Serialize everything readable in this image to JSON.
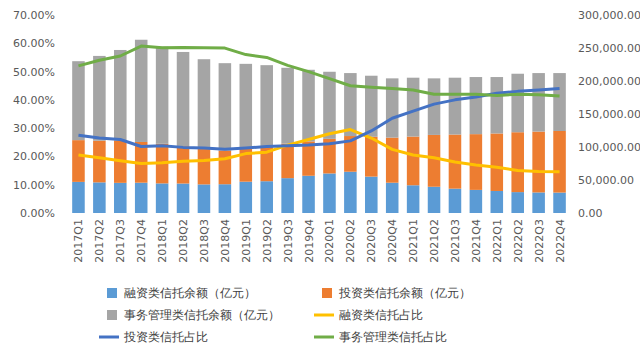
{
  "chart_data": {
    "type": "bar",
    "stacked": true,
    "grid": false,
    "legend": "bottom",
    "categories": [
      "2017Q1",
      "2017Q2",
      "2017Q3",
      "2017Q4",
      "2018Q1",
      "2018Q2",
      "2018Q3",
      "2018Q4",
      "2019Q1",
      "2019Q2",
      "2019Q3",
      "2019Q4",
      "2020Q1",
      "2020Q2",
      "2020Q3",
      "2020Q4",
      "2021Q1",
      "2021Q2",
      "2021Q3",
      "2021Q4",
      "2022Q1",
      "2022Q2",
      "2022Q3",
      "2022Q4"
    ],
    "ylim": [
      0,
      70
    ],
    "yticks": [
      {
        "value": 0,
        "label": "0.00%"
      },
      {
        "value": 10,
        "label": "10.00%"
      },
      {
        "value": 20,
        "label": "20.00%"
      },
      {
        "value": 30,
        "label": "30.00%"
      },
      {
        "value": 40,
        "label": "40.00%"
      },
      {
        "value": 50,
        "label": "50.00%"
      },
      {
        "value": 60,
        "label": "60.00%"
      },
      {
        "value": 70,
        "label": "70.00%"
      }
    ],
    "y2lim": [
      0,
      300000
    ],
    "y2ticks": [
      {
        "value": 0,
        "label": "0.00"
      },
      {
        "value": 50000,
        "label": "50,000.00"
      },
      {
        "value": 100000,
        "label": "100,000.00"
      },
      {
        "value": 150000,
        "label": "150,000.00"
      },
      {
        "value": 200000,
        "label": "200,000.00"
      },
      {
        "value": 250000,
        "label": "250,000.00"
      },
      {
        "value": 300000,
        "label": "300,000.00"
      }
    ],
    "series": [
      {
        "name": "融资类信托余额（亿元）",
        "type": "bar",
        "axis": "y2",
        "color": "#5b9bd5",
        "values": [
          47150,
          46410,
          45695,
          45938,
          44856,
          44652,
          43338,
          43584,
          47460,
          48160,
          52800,
          56420,
          59920,
          62540,
          55120,
          45900,
          42025,
          39780,
          36900,
          35020,
          33372,
          31650,
          31164,
          30952
        ]
      },
      {
        "name": "投资类信托余额（亿元）",
        "type": "bar",
        "axis": "y2",
        "color": "#ed7d31",
        "values": [
          63250,
          63070,
          64220,
          61688,
          59976,
          56608,
          53590,
          51075,
          51980,
          52640,
          52360,
          52080,
          52430,
          54060,
          60320,
          68340,
          73800,
          78540,
          82000,
          84460,
          87138,
          90730,
          92220,
          93280
        ]
      },
      {
        "name": "事务管理类信托余额（亿元）",
        "type": "bar",
        "axis": "y2",
        "color": "#a5a5a5",
        "values": [
          119600,
          128520,
          137085,
          154875,
          147168,
          142740,
          136072,
          132341,
          126560,
          123200,
          114840,
          108500,
          101650,
          95400,
          92560,
          89760,
          89175,
          85680,
          86100,
          86520,
          85490,
          88620,
          88616,
          87768
        ]
      },
      {
        "name": "融资类信托占比",
        "type": "line",
        "color": "#ffc000",
        "values": [
          20.5,
          19.5,
          18.5,
          17.5,
          17.8,
          18.3,
          18.6,
          19.2,
          21.0,
          21.5,
          24.0,
          26.0,
          28.0,
          29.5,
          26.5,
          22.5,
          20.5,
          19.5,
          18.0,
          17.0,
          16.2,
          15.0,
          14.7,
          14.6
        ]
      },
      {
        "name": "投资类信托占比",
        "type": "line",
        "color": "#4472c4",
        "values": [
          27.5,
          26.5,
          26.0,
          23.5,
          23.8,
          23.2,
          23.0,
          22.5,
          23.0,
          23.5,
          23.8,
          24.0,
          24.5,
          25.5,
          29.0,
          33.5,
          36.0,
          38.5,
          40.0,
          41.0,
          42.3,
          43.0,
          43.5,
          44.0
        ]
      },
      {
        "name": "事务管理类信托占比",
        "type": "line",
        "color": "#70ad47",
        "values": [
          52.0,
          54.0,
          55.5,
          59.0,
          58.4,
          58.5,
          58.4,
          58.3,
          56.0,
          55.0,
          52.2,
          50.0,
          47.5,
          45.0,
          44.5,
          44.0,
          43.5,
          42.0,
          42.0,
          42.0,
          41.5,
          42.0,
          41.8,
          41.4
        ]
      }
    ]
  }
}
